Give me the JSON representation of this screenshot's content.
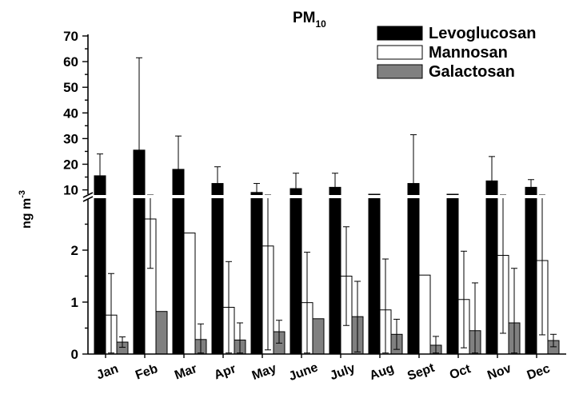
{
  "chart_data": {
    "type": "bar",
    "title": "PM",
    "title_subscript": "10",
    "ylabel": "ng m",
    "ylabel_superscript": "-3",
    "categories": [
      "Jan",
      "Feb",
      "Mar",
      "Apr",
      "May",
      "June",
      "July",
      "Aug",
      "Sept",
      "Oct",
      "Nov",
      "Dec"
    ],
    "broken_axis": {
      "lower_range": [
        0,
        3.0
      ],
      "upper_range": [
        8,
        70
      ],
      "lower_ticks": [
        0,
        1,
        2
      ],
      "upper_ticks": [
        10,
        20,
        30,
        40,
        50,
        60,
        70
      ]
    },
    "legend_position": "top-right",
    "series": [
      {
        "name": "Levoglucosan",
        "color": "#000000",
        "values": [
          15.5,
          25.5,
          18,
          12.5,
          9,
          10.5,
          11,
          null,
          12.5,
          null,
          13.5,
          11
        ],
        "errors": [
          8.5,
          36,
          13,
          6.5,
          3.5,
          6,
          5.5,
          null,
          19,
          null,
          9.5,
          3
        ]
      },
      {
        "name": "Mannosan",
        "color": "#ffffff",
        "values": [
          0.75,
          2.6,
          2.33,
          0.9,
          2.08,
          0.99,
          1.5,
          0.85,
          1.52,
          1.05,
          1.9,
          1.8
        ],
        "errors": [
          0.8,
          0.95,
          0.0,
          0.88,
          2.0,
          0.97,
          0.95,
          0.98,
          0.0,
          0.93,
          1.5,
          1.43
        ]
      },
      {
        "name": "Galactosan",
        "color": "#808080",
        "values": [
          0.23,
          0.82,
          0.28,
          0.27,
          0.43,
          0.68,
          0.72,
          0.38,
          0.17,
          0.45,
          0.6,
          0.26
        ],
        "errors": [
          0.1,
          0.0,
          0.3,
          0.33,
          0.22,
          0.0,
          0.68,
          0.29,
          0.17,
          0.92,
          1.05,
          0.12
        ]
      }
    ]
  }
}
